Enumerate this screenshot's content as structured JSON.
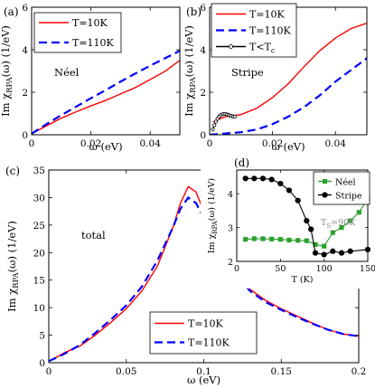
{
  "figure": {
    "panel_count": 4
  },
  "chart_data": [
    {
      "panel": "(a)",
      "type": "line",
      "xlabel": "ω (eV)",
      "ylabel": "Im χ_RPA(ω) (1/eV)",
      "xlim": [
        0,
        0.05
      ],
      "ylim": [
        0,
        6
      ],
      "xticks": [
        0,
        0.02,
        0.04
      ],
      "yticks": [
        0,
        2,
        4,
        6
      ],
      "grid": false,
      "legend_position": "top-left",
      "annotation": "Néel",
      "series": [
        {
          "name": "T=10K",
          "color": "#ff0000",
          "dash": "solid",
          "x": [
            0,
            0.005,
            0.01,
            0.015,
            0.02,
            0.025,
            0.03,
            0.035,
            0.04,
            0.045,
            0.05
          ],
          "y": [
            0.05,
            0.42,
            0.78,
            1.08,
            1.36,
            1.62,
            1.92,
            2.22,
            2.6,
            2.98,
            3.5
          ]
        },
        {
          "name": "T=110K",
          "color": "#0000ff",
          "dash": "dashed",
          "x": [
            0,
            0.005,
            0.01,
            0.015,
            0.02,
            0.025,
            0.03,
            0.035,
            0.04,
            0.045,
            0.05
          ],
          "y": [
            0.05,
            0.5,
            0.92,
            1.32,
            1.72,
            2.1,
            2.5,
            2.88,
            3.25,
            3.6,
            3.95
          ]
        }
      ]
    },
    {
      "panel": "(b)",
      "type": "line",
      "xlabel": "ω (eV)",
      "ylabel": "Im χ_RPA(ω) (1/eV)",
      "xlim": [
        0,
        0.05
      ],
      "ylim": [
        0,
        6
      ],
      "xticks": [
        0,
        0.02,
        0.04
      ],
      "yticks": [
        0,
        2,
        4,
        6
      ],
      "grid": false,
      "legend_position": "top-left",
      "annotation": "Stripe",
      "series": [
        {
          "name": "T=10K",
          "color": "#ff0000",
          "dash": "solid",
          "x": [
            0.001,
            0.005,
            0.01,
            0.015,
            0.02,
            0.025,
            0.03,
            0.035,
            0.04,
            0.045,
            0.05
          ],
          "y": [
            0.6,
            0.85,
            0.95,
            1.25,
            1.75,
            2.4,
            3.2,
            3.95,
            4.55,
            5.0,
            5.25
          ]
        },
        {
          "name": "T=110K",
          "color": "#0000ff",
          "dash": "dashed",
          "x": [
            0,
            0.005,
            0.01,
            0.015,
            0.02,
            0.025,
            0.03,
            0.035,
            0.04,
            0.045,
            0.05
          ],
          "y": [
            0,
            0.06,
            0.12,
            0.25,
            0.5,
            0.85,
            1.3,
            1.85,
            2.5,
            3.05,
            3.6
          ]
        },
        {
          "name": "T<T_c",
          "color": "#000000",
          "dash": "solid",
          "marker": "open-circle",
          "x": [
            0.001,
            0.0015,
            0.002,
            0.0025,
            0.003,
            0.0035,
            0.004,
            0.0045,
            0.005,
            0.0055,
            0.006,
            0.0065,
            0.007,
            0.0075,
            0.008
          ],
          "y": [
            0.25,
            0.45,
            0.62,
            0.75,
            0.85,
            0.92,
            0.96,
            0.98,
            0.98,
            0.96,
            0.93,
            0.9,
            0.88,
            0.86,
            0.85
          ]
        }
      ]
    },
    {
      "panel": "(c)",
      "type": "line",
      "xlabel": "ω (eV)",
      "ylabel": "Im χ_RPA(ω) (1/eV)",
      "xlim": [
        0,
        0.2
      ],
      "ylim": [
        0,
        35
      ],
      "xticks": [
        0,
        0.05,
        0.1,
        0.15,
        0.2
      ],
      "yticks": [
        0,
        5,
        10,
        15,
        20,
        25,
        30,
        35
      ],
      "grid": false,
      "legend_position": "bottom-right",
      "annotation": "total",
      "series": [
        {
          "name": "T=10K",
          "color": "#ff0000",
          "dash": "solid",
          "x": [
            0,
            0.005,
            0.01,
            0.02,
            0.03,
            0.04,
            0.05,
            0.06,
            0.07,
            0.08,
            0.085,
            0.09,
            0.095,
            0.1,
            0.11,
            0.12,
            0.13,
            0.14,
            0.15,
            0.16,
            0.17,
            0.18,
            0.19,
            0.2
          ],
          "y": [
            0.3,
            1.0,
            1.8,
            3.0,
            5.0,
            7.3,
            9.8,
            13.0,
            17.5,
            24.5,
            29.0,
            32.0,
            31.0,
            27.5,
            21.0,
            16.5,
            13.3,
            11.3,
            9.8,
            8.5,
            7.2,
            6.0,
            5.2,
            4.8
          ]
        },
        {
          "name": "T=110K",
          "color": "#0000ff",
          "dash": "dashed",
          "x": [
            0,
            0.005,
            0.01,
            0.02,
            0.03,
            0.04,
            0.05,
            0.06,
            0.07,
            0.08,
            0.085,
            0.09,
            0.095,
            0.1,
            0.11,
            0.12,
            0.13,
            0.14,
            0.15,
            0.16,
            0.17,
            0.18,
            0.19,
            0.2
          ],
          "y": [
            0.3,
            0.9,
            1.6,
            3.2,
            5.4,
            7.8,
            10.4,
            13.8,
            18.5,
            24.5,
            28.0,
            30.0,
            29.0,
            26.3,
            20.5,
            16.0,
            13.0,
            11.0,
            9.6,
            8.3,
            7.1,
            6.0,
            5.2,
            4.8
          ]
        }
      ]
    },
    {
      "panel": "(d)",
      "type": "line",
      "xlabel": "T (K)",
      "ylabel": "Im χ_RPA(ω) (1/eV)",
      "xlim": [
        0,
        150
      ],
      "ylim": [
        2,
        4.7
      ],
      "xticks": [
        0,
        50,
        100,
        150
      ],
      "yticks": [
        2,
        3,
        4
      ],
      "grid": false,
      "legend_position": "top-right",
      "annotation": "T_S=90K",
      "series": [
        {
          "name": "Néel",
          "color": "#2ca02c",
          "dash": "solid",
          "marker": "square",
          "x": [
            10,
            20,
            30,
            40,
            50,
            60,
            70,
            80,
            90,
            100,
            110,
            120,
            130,
            140,
            150
          ],
          "y": [
            2.65,
            2.67,
            2.67,
            2.66,
            2.65,
            2.63,
            2.62,
            2.61,
            2.5,
            2.45,
            2.85,
            3.0,
            3.2,
            3.45,
            3.85
          ]
        },
        {
          "name": "Stripe",
          "color": "#000000",
          "dash": "solid",
          "marker": "circle",
          "x": [
            10,
            20,
            30,
            40,
            50,
            60,
            70,
            80,
            85,
            90,
            100,
            110,
            120,
            130,
            150
          ],
          "y": [
            4.45,
            4.45,
            4.45,
            4.42,
            4.3,
            4.1,
            3.8,
            3.2,
            2.95,
            2.25,
            2.2,
            2.3,
            2.25,
            2.3,
            2.35
          ]
        }
      ]
    }
  ]
}
